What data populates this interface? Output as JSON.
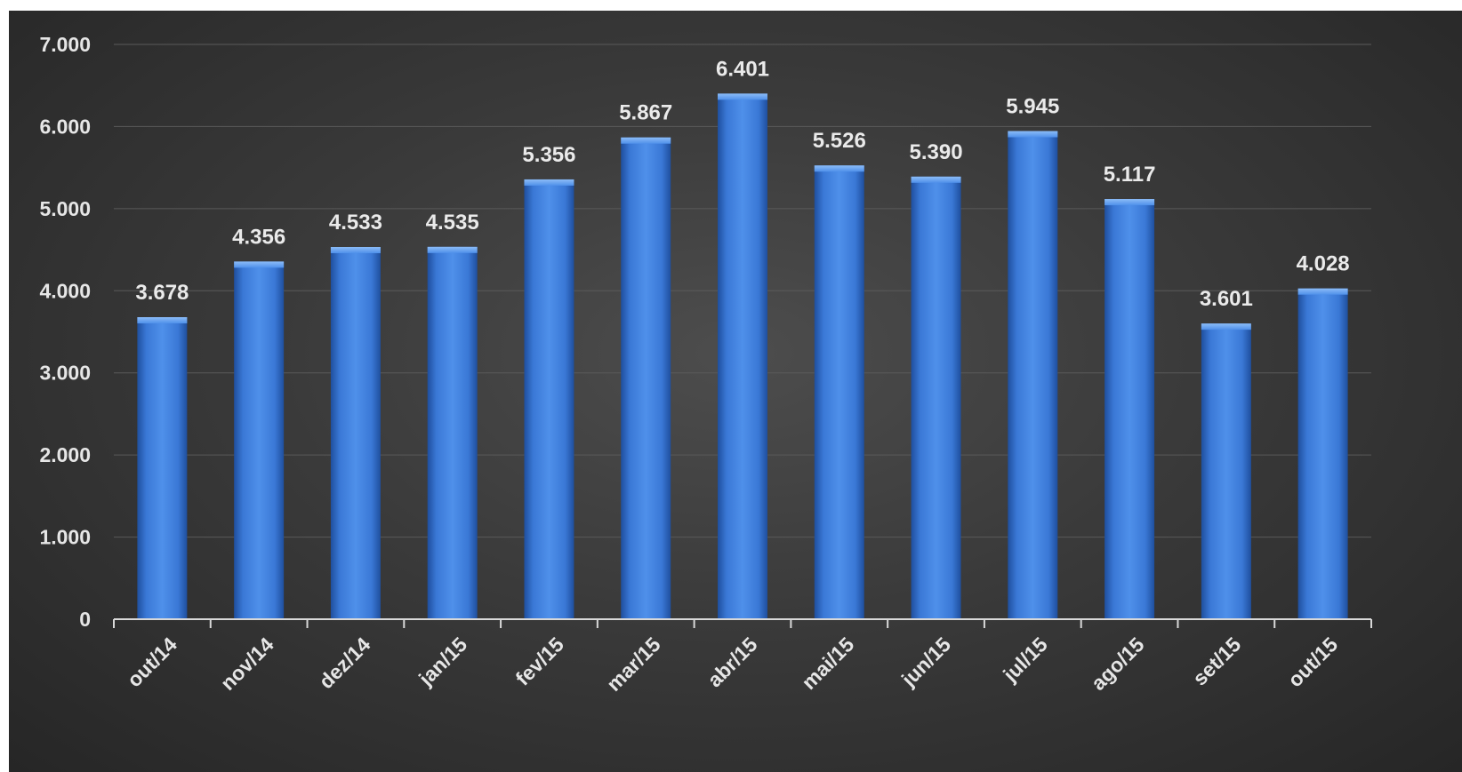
{
  "chart_data": {
    "type": "bar",
    "title": "",
    "xlabel": "",
    "ylabel": "",
    "categories": [
      "out/14",
      "nov/14",
      "dez/14",
      "jan/15",
      "fev/15",
      "mar/15",
      "abr/15",
      "mai/15",
      "jun/15",
      "jul/15",
      "ago/15",
      "set/15",
      "out/15"
    ],
    "values": [
      3678,
      4356,
      4533,
      4535,
      5356,
      5867,
      6401,
      5526,
      5390,
      5945,
      5117,
      3601,
      4028
    ],
    "value_labels": [
      "3.678",
      "4.356",
      "4.533",
      "4.535",
      "5.356",
      "5.867",
      "6.401",
      "5.526",
      "5.390",
      "5.945",
      "5.117",
      "3.601",
      "4.028"
    ],
    "ylim": [
      0,
      7000
    ],
    "yticks": [
      0,
      1000,
      2000,
      3000,
      4000,
      5000,
      6000,
      7000
    ],
    "ytick_labels": [
      "0",
      "1.000",
      "2.000",
      "3.000",
      "4.000",
      "5.000",
      "6.000",
      "7.000"
    ],
    "grid": true,
    "legend": "none",
    "colors": {
      "bar": "#3f7fdc",
      "bar_dark": "#1f4f9e",
      "bar_light": "#6aa3f0",
      "background": "#3a3a3a",
      "gridline": "#5a5a5a",
      "text": "#e6e6e6"
    }
  }
}
